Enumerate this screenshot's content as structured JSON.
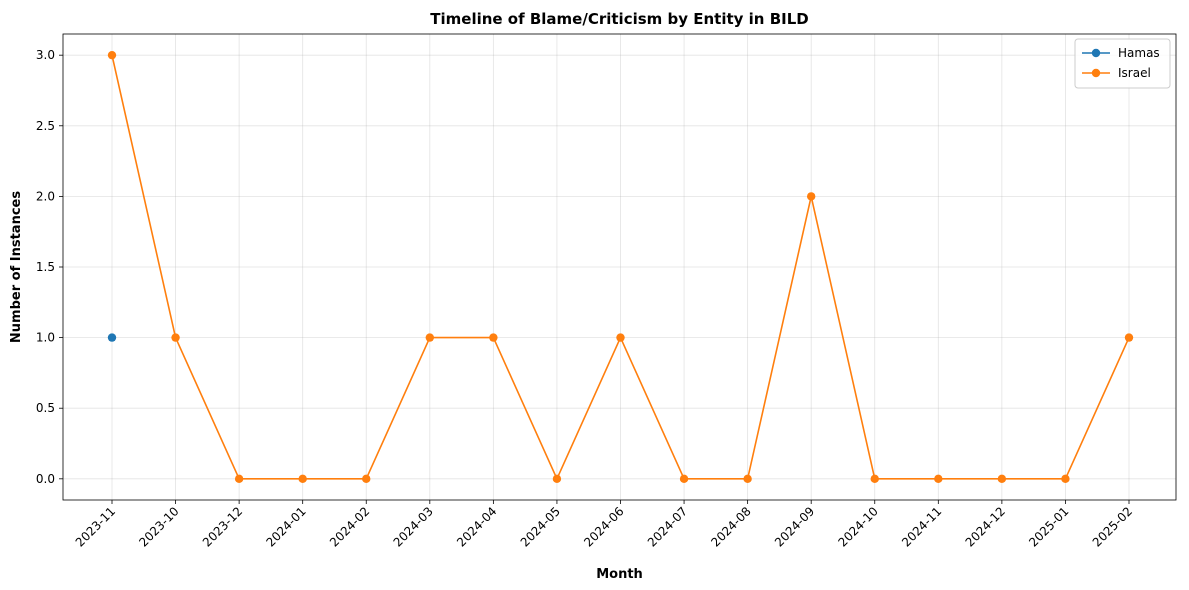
{
  "chart_data": {
    "type": "line",
    "title": "Timeline of Blame/Criticism by Entity in BILD",
    "xlabel": "Month",
    "ylabel": "Number of Instances",
    "categories": [
      "2023-11",
      "2023-10",
      "2023-12",
      "2024-01",
      "2024-02",
      "2024-03",
      "2024-04",
      "2024-05",
      "2024-06",
      "2024-07",
      "2024-08",
      "2024-09",
      "2024-10",
      "2024-11",
      "2024-12",
      "2025-01",
      "2025-02"
    ],
    "yticks": [
      "0.0",
      "0.5",
      "1.0",
      "1.5",
      "2.0",
      "2.5",
      "3.0"
    ],
    "ylim": [
      -0.15,
      3.15
    ],
    "grid": true,
    "legend": "top-right",
    "series": [
      {
        "name": "Hamas",
        "color": "#1f77b4",
        "values": [
          1,
          null,
          null,
          null,
          null,
          null,
          null,
          null,
          null,
          null,
          null,
          null,
          null,
          null,
          null,
          null,
          null
        ]
      },
      {
        "name": "Israel",
        "color": "#ff7f0e",
        "values": [
          3,
          1,
          0,
          0,
          0,
          1,
          1,
          0,
          1,
          0,
          0,
          2,
          0,
          0,
          0,
          0,
          1
        ]
      }
    ]
  }
}
